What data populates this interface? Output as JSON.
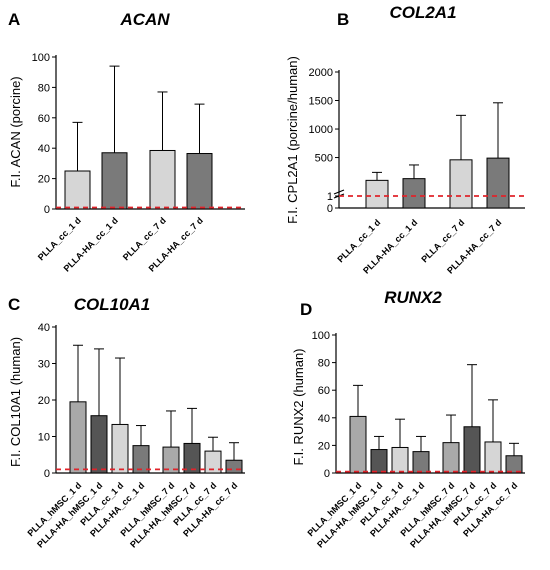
{
  "chart_data": [
    {
      "panel": "A",
      "type": "bar",
      "title": "ACAN",
      "ylabel": "F.I. ACAN (porcine)",
      "ylim": [
        0,
        100
      ],
      "yticks": [
        0,
        20,
        40,
        60,
        80,
        100
      ],
      "categories": [
        "PLLA_cc_1 d",
        "PLLA-HA_cc_1 d",
        "",
        "PLLA_cc_7 d",
        "PLLA-HA_cc_7 d"
      ],
      "values": [
        25,
        37,
        null,
        38.5,
        36.5
      ],
      "error_upper": [
        57,
        94,
        null,
        77,
        69
      ],
      "bar_colors": [
        "#d6d6d6",
        "#7a7a7a",
        null,
        "#d6d6d6",
        "#7a7a7a"
      ],
      "reference_line": 1,
      "reference_color": "#e0242b"
    },
    {
      "panel": "B",
      "type": "bar",
      "title": "COL2A1",
      "ylabel": "F.I. CPL2A1 (porcine/human)",
      "ylim": [
        0,
        2000
      ],
      "yticks": [
        0,
        1,
        500,
        1000,
        1500,
        2000
      ],
      "broken_axis": true,
      "categories": [
        "PLLA_cc_1 d",
        "PLLA-HA_cc_1 d",
        "",
        "PLLA_cc_7 d",
        "PLLA-HA_cc_7 d"
      ],
      "values": [
        100,
        130,
        null,
        460,
        490
      ],
      "error_upper": [
        240,
        370,
        null,
        1240,
        1460
      ],
      "bar_colors": [
        "#d6d6d6",
        "#7a7a7a",
        null,
        "#d6d6d6",
        "#7a7a7a"
      ],
      "reference_line": 1,
      "reference_color": "#e0242b"
    },
    {
      "panel": "C",
      "type": "bar",
      "title": "COL10A1",
      "ylabel": "F.I. COL10A1 (human)",
      "ylim": [
        0,
        40
      ],
      "yticks": [
        0,
        10,
        20,
        30,
        40
      ],
      "categories": [
        "PLLA_hMSC_1 d",
        "PLLA-HA_hMSC_1 d",
        "PLLA_cc_1 d",
        "PLLA-HA_cc_1 d",
        "",
        "PLLA_hMSC_7 d",
        "PLLA-HA_hMSC_7 d",
        "PLLA_cc_7 d",
        "PLLA-HA_cc_7 d"
      ],
      "values": [
        19.5,
        15.7,
        13.3,
        7.5,
        null,
        7.1,
        8.1,
        6.0,
        3.5
      ],
      "error_upper": [
        35,
        34,
        31.5,
        13,
        null,
        17,
        17.7,
        9.8,
        8.3
      ],
      "bar_colors": [
        "#a9a9a9",
        "#555555",
        "#d6d6d6",
        "#7a7a7a",
        null,
        "#a9a9a9",
        "#555555",
        "#d6d6d6",
        "#7a7a7a"
      ],
      "reference_line": 1,
      "reference_color": "#e0242b"
    },
    {
      "panel": "D",
      "type": "bar",
      "title": "RUNX2",
      "ylabel": "F.I. RUNX2 (human)",
      "ylim": [
        0,
        100
      ],
      "yticks": [
        0,
        20,
        40,
        60,
        80,
        100
      ],
      "categories": [
        "PLLA_hMSC_1 d",
        "PLLA-HA_hMSC_1 d",
        "PLLA_cc_1 d",
        "PLLA-HA_cc_1 d",
        "",
        "PLLA_hMSC_7 d",
        "PLLA-HA_hMSC_7 d",
        "PLLA_cc_7 d",
        "PLLA-HA_cc_7 d"
      ],
      "values": [
        41,
        17,
        18.5,
        15.5,
        null,
        22,
        33.5,
        22.5,
        12.5
      ],
      "error_upper": [
        63.5,
        26.5,
        39,
        26.5,
        null,
        42,
        78.5,
        53,
        21.5
      ],
      "bar_colors": [
        "#a9a9a9",
        "#555555",
        "#d6d6d6",
        "#7a7a7a",
        null,
        "#a9a9a9",
        "#555555",
        "#d6d6d6",
        "#7a7a7a"
      ],
      "reference_line": 1,
      "reference_color": "#e0242b"
    }
  ]
}
